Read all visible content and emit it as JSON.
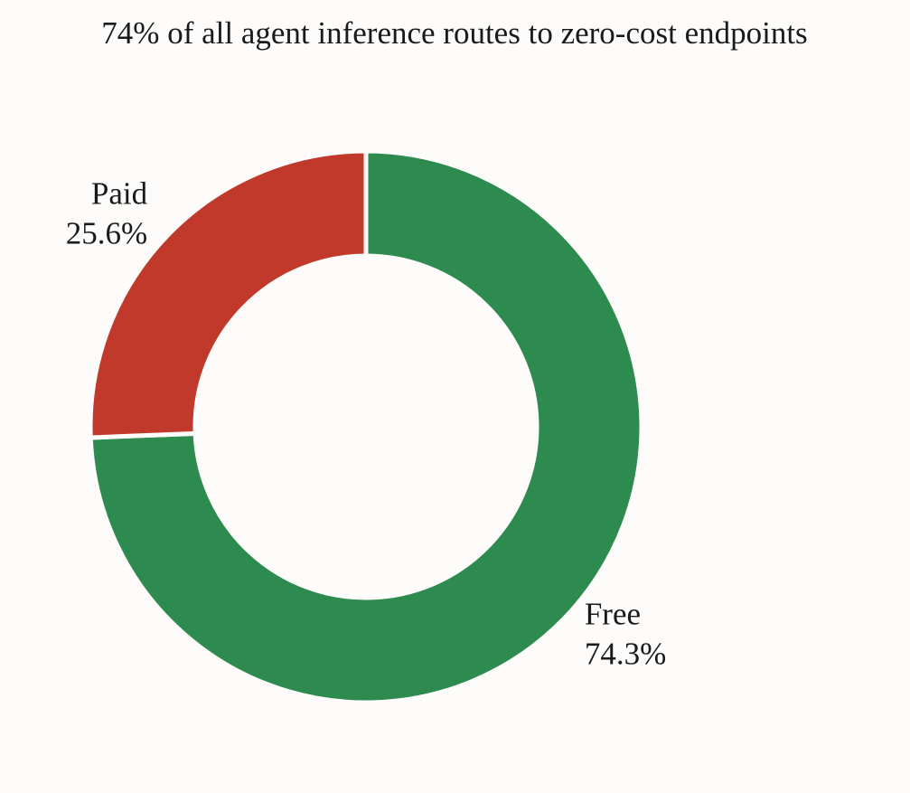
{
  "chart_data": {
    "type": "donut",
    "title": "74% of all agent inference routes to zero-cost endpoints",
    "categories": [
      "Free",
      "Paid"
    ],
    "values": [
      74.3,
      25.6
    ],
    "value_labels": [
      "74.3%",
      "25.6%"
    ],
    "colors": [
      "#2e8b50",
      "#c0392b"
    ],
    "start": "top",
    "direction": "clockwise"
  }
}
